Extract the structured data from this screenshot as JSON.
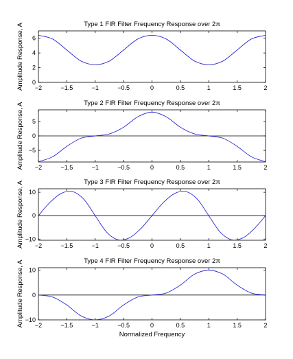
{
  "colors": {
    "curve": "#2b2bd6",
    "axis": "#000000",
    "zero_line": "#000000",
    "background": "#ffffff"
  },
  "chart_data": [
    {
      "type": "line",
      "title": "Type 1 FIR Filter Frequency Response over 2π",
      "xlabel": "",
      "ylabel": "Amplitude Response, A",
      "xlim": [
        -2,
        2
      ],
      "ylim": [
        0,
        7
      ],
      "xticks": [
        "−2",
        "−1.5",
        "−1",
        "−0.5",
        "0",
        "0.5",
        "1",
        "1.5",
        "2"
      ],
      "yticks": [
        "0",
        "2",
        "4",
        "6"
      ],
      "zero_line": false,
      "series": [
        {
          "x": [
            -2,
            -1.75,
            -1.5,
            -1.25,
            -1,
            -0.75,
            -0.5,
            -0.25,
            0,
            0.25,
            0.5,
            0.75,
            1,
            1.25,
            1.5,
            1.75,
            2
          ],
          "y": [
            6.4,
            5.9,
            4.4,
            2.9,
            2.4,
            2.9,
            4.4,
            5.9,
            6.4,
            5.9,
            4.4,
            2.9,
            2.4,
            2.9,
            4.4,
            5.9,
            6.4
          ]
        }
      ]
    },
    {
      "type": "line",
      "title": "Type 2 FIR Filter Frequency Response over 2π",
      "xlabel": "",
      "ylabel": "Amplitude Response, A",
      "xlim": [
        -2,
        2
      ],
      "ylim": [
        -9,
        9
      ],
      "xticks": [
        "−2",
        "−1.5",
        "−1",
        "−0.5",
        "0",
        "0.5",
        "1",
        "1.5",
        "2"
      ],
      "yticks": [
        "−5",
        "0",
        "5"
      ],
      "zero_line": true,
      "series": [
        {
          "x": [
            -2,
            -1.75,
            -1.5,
            -1.25,
            -1,
            -0.75,
            -0.5,
            -0.25,
            0,
            0.25,
            0.5,
            0.75,
            1,
            1.25,
            1.5,
            1.75,
            2
          ],
          "y": [
            -8.9,
            -7.2,
            -3.6,
            -0.8,
            0,
            0.7,
            3.0,
            6.6,
            8.2,
            6.6,
            3.0,
            0.7,
            0,
            -0.8,
            -3.6,
            -7.2,
            -8.9
          ]
        }
      ]
    },
    {
      "type": "line",
      "title": "Type 3 FIR Filter Frequency Response over 2π",
      "xlabel": "",
      "ylabel": "Amplitude Response, A",
      "xlim": [
        -2,
        2
      ],
      "ylim": [
        -10.5,
        11.5
      ],
      "xticks": [
        "−2",
        "−1.5",
        "−1",
        "−0.5",
        "0",
        "0.5",
        "1",
        "1.5",
        "2"
      ],
      "yticks": [
        "−10",
        "0",
        "10"
      ],
      "zero_line": true,
      "series": [
        {
          "x": [
            -2,
            -1.8,
            -1.6,
            -1.4,
            -1.2,
            -1.0,
            -0.8,
            -0.6,
            -0.4,
            -0.2,
            0,
            0.2,
            0.4,
            0.6,
            0.8,
            1.0,
            1.2,
            1.4,
            1.6,
            1.8,
            2
          ],
          "y": [
            0,
            5.6,
            9.5,
            10.3,
            7.0,
            0,
            -7.0,
            -10.3,
            -9.5,
            -5.6,
            0,
            5.6,
            9.5,
            10.3,
            7.0,
            0,
            -7.0,
            -10.3,
            -9.5,
            -5.6,
            0
          ]
        }
      ]
    },
    {
      "type": "line",
      "title": "Type 4 FIR Filter Frequency Response over 2π",
      "xlabel": "Normalized Frequency",
      "ylabel": "Amplitude Response, A",
      "xlim": [
        -2,
        2
      ],
      "ylim": [
        -10,
        11
      ],
      "xticks": [
        "−2",
        "−1.5",
        "−1",
        "−0.5",
        "0",
        "0.5",
        "1",
        "1.5",
        "2"
      ],
      "yticks": [
        "−10",
        "0",
        "10"
      ],
      "zero_line": true,
      "series": [
        {
          "x": [
            -2,
            -1.75,
            -1.5,
            -1.25,
            -1,
            -0.75,
            -0.5,
            -0.25,
            0,
            0.25,
            0.5,
            0.75,
            1,
            1.25,
            1.5,
            1.75,
            2
          ],
          "y": [
            0,
            -0.8,
            -4.0,
            -8.4,
            -10.0,
            -8.4,
            -4.0,
            -0.8,
            0,
            0.8,
            4.0,
            8.4,
            10.0,
            8.4,
            4.0,
            0.8,
            0
          ]
        }
      ]
    }
  ]
}
